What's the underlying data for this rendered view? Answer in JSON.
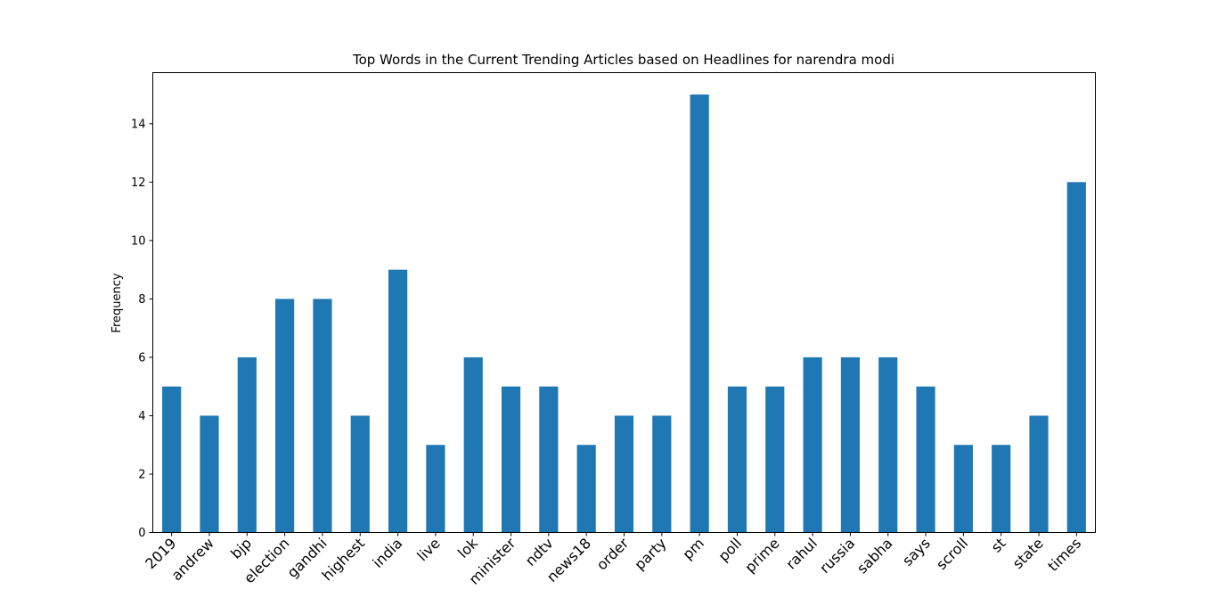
{
  "chart_data": {
    "type": "bar",
    "title": "Top Words in the Current Trending Articles based on Headlines for narendra modi",
    "xlabel": "",
    "ylabel": "Frequency",
    "categories": [
      "2019",
      "andrew",
      "bjp",
      "election",
      "gandhi",
      "highest",
      "india",
      "live",
      "lok",
      "minister",
      "ndtv",
      "news18",
      "order",
      "party",
      "pm",
      "poll",
      "prime",
      "rahul",
      "russia",
      "sabha",
      "says",
      "scroll",
      "st",
      "state",
      "times"
    ],
    "values": [
      5,
      4,
      6,
      8,
      8,
      4,
      9,
      3,
      6,
      5,
      5,
      3,
      4,
      4,
      15,
      5,
      5,
      6,
      6,
      6,
      5,
      3,
      3,
      4,
      12
    ],
    "ylim": [
      0,
      15.75
    ],
    "yticks": [
      "0",
      "2",
      "4",
      "6",
      "8",
      "10",
      "12",
      "14"
    ],
    "color": "#1f77b4",
    "grid": false,
    "legend": "none"
  }
}
